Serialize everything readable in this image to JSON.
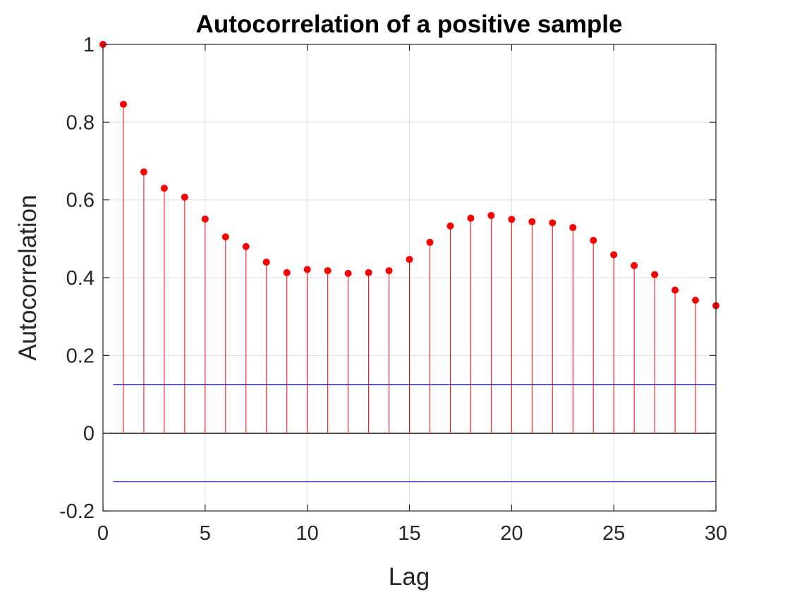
{
  "chart_data": {
    "type": "stem",
    "title": "Autocorrelation of a positive sample",
    "xlabel": "Lag",
    "ylabel": "Autocorrelation",
    "xlim": [
      0,
      30
    ],
    "ylim": [
      -0.2,
      1
    ],
    "xticks": [
      0,
      5,
      10,
      15,
      20,
      25,
      30
    ],
    "xtick_labels": [
      "0",
      "5",
      "10",
      "15",
      "20",
      "25",
      "30"
    ],
    "yticks": [
      -0.2,
      0,
      0.2,
      0.4,
      0.6,
      0.8,
      1
    ],
    "ytick_labels": [
      "-0.2",
      "0",
      "0.2",
      "0.4",
      "0.6",
      "0.8",
      "1"
    ],
    "grid": true,
    "series": [
      {
        "x": [
          0,
          1,
          2,
          3,
          4,
          5,
          6,
          7,
          8,
          9,
          10,
          11,
          12,
          13,
          14,
          15,
          16,
          17,
          18,
          19,
          20,
          21,
          22,
          23,
          24,
          25,
          26,
          27,
          28,
          29,
          30
        ],
        "values": [
          1.0,
          0.846,
          0.672,
          0.63,
          0.607,
          0.551,
          0.505,
          0.48,
          0.44,
          0.413,
          0.421,
          0.418,
          0.411,
          0.413,
          0.418,
          0.447,
          0.491,
          0.533,
          0.553,
          0.56,
          0.55,
          0.544,
          0.541,
          0.529,
          0.496,
          0.459,
          0.431,
          0.408,
          0.368,
          0.342,
          0.328
        ],
        "color": "#ff0000"
      }
    ],
    "confidence_bounds": {
      "upper": 0.125,
      "lower": -0.125,
      "x_range": [
        0.5,
        30
      ],
      "color": "#0000ff"
    },
    "zero_line_color": "#000000"
  }
}
